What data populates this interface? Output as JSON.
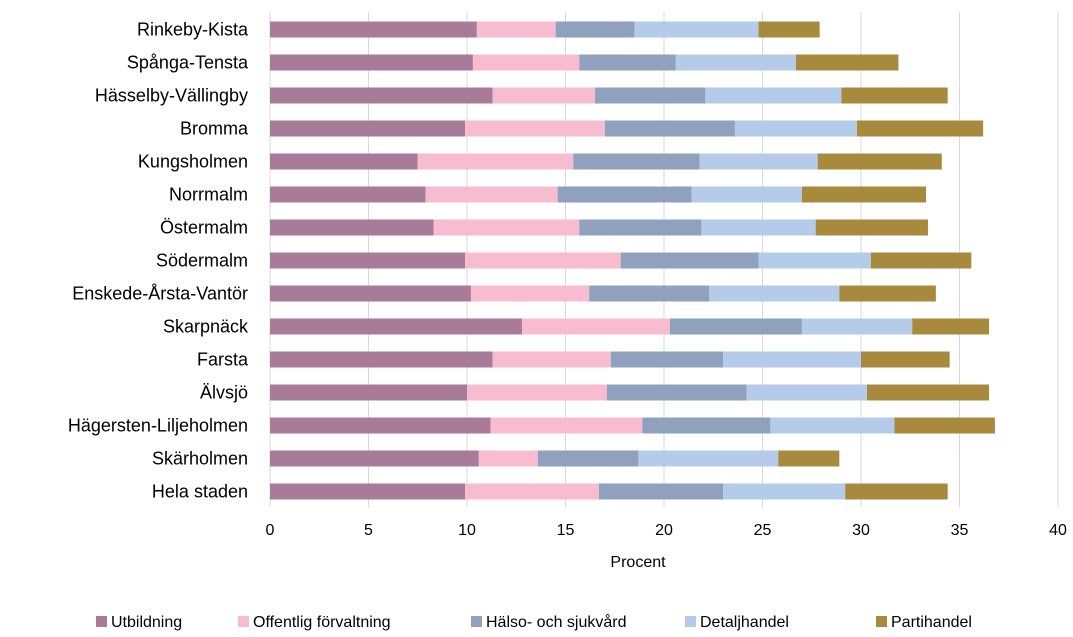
{
  "chart_data": {
    "type": "bar",
    "orientation": "horizontal",
    "stacked": true,
    "categories": [
      "Rinkeby-Kista",
      "Spånga-Tensta",
      "Hässelby-Vällingby",
      "Bromma",
      "Kungsholmen",
      "Norrmalm",
      "Östermalm",
      "Södermalm",
      "Enskede-Årsta-Vantör",
      "Skarpnäck",
      "Farsta",
      "Älvsjö",
      "Hägersten-Liljeholmen",
      "Skärholmen",
      "Hela staden"
    ],
    "series": [
      {
        "name": "Utbildning",
        "color": "#a87c98",
        "values": [
          10.5,
          10.3,
          11.3,
          9.9,
          7.5,
          7.9,
          8.3,
          9.9,
          10.2,
          12.8,
          11.3,
          10.0,
          11.2,
          10.6,
          9.9
        ]
      },
      {
        "name": "Offentlig förvaltning",
        "color": "#f7bcd0",
        "values": [
          4.0,
          5.4,
          5.2,
          7.1,
          7.9,
          6.7,
          7.4,
          7.9,
          6.0,
          7.5,
          6.0,
          7.1,
          7.7,
          3.0,
          6.8
        ]
      },
      {
        "name": "Hälso- och sjukvård",
        "color": "#8fa1bd",
        "values": [
          4.0,
          4.9,
          5.6,
          6.6,
          6.4,
          6.8,
          6.2,
          7.0,
          6.1,
          6.7,
          5.7,
          7.1,
          6.5,
          5.1,
          6.3
        ]
      },
      {
        "name": "Detaljhandel",
        "color": "#b5cbea",
        "values": [
          6.3,
          6.1,
          6.9,
          6.2,
          6.0,
          5.6,
          5.8,
          5.7,
          6.6,
          5.6,
          7.0,
          6.1,
          6.3,
          7.1,
          6.2
        ]
      },
      {
        "name": "Partihandel",
        "color": "#a88a3f",
        "values": [
          3.1,
          5.2,
          5.4,
          6.4,
          6.3,
          6.3,
          5.7,
          5.1,
          4.9,
          3.9,
          4.5,
          6.2,
          5.1,
          3.1,
          5.2
        ]
      }
    ],
    "xlim": [
      0,
      40
    ],
    "xticks": [
      "0",
      "5",
      "10",
      "15",
      "20",
      "25",
      "30",
      "35",
      "40"
    ],
    "xlabel": "Procent",
    "ylabel": "",
    "title": "",
    "grid": "vertical",
    "legend_position": "bottom"
  }
}
